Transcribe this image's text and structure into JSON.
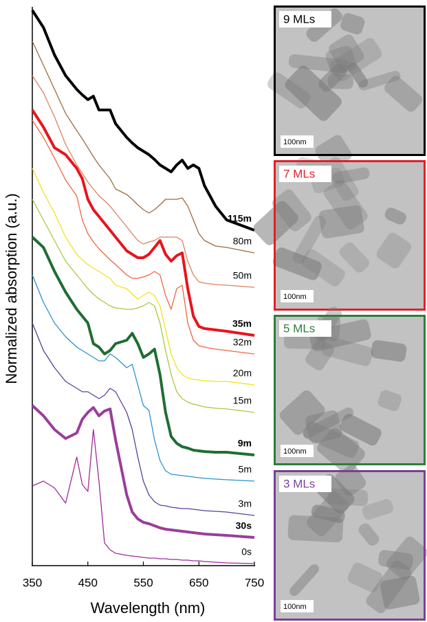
{
  "chart_data": {
    "type": "line",
    "xlabel": "Wavelength (nm)",
    "ylabel": "Normalized absorption (a.u.)",
    "xlim": [
      350,
      750
    ],
    "xticks": [
      350,
      450,
      550,
      650,
      750
    ],
    "ylim": [
      0,
      8.15
    ],
    "x": [
      350,
      370,
      390,
      410,
      430,
      440,
      450,
      460,
      470,
      480,
      490,
      500,
      520,
      530,
      540,
      550,
      560,
      570,
      580,
      590,
      600,
      610,
      620,
      630,
      640,
      650,
      660,
      680,
      700,
      750
    ],
    "series": [
      {
        "name": "115m",
        "color": "#000000",
        "bold": true,
        "values": [
          8.1,
          7.85,
          7.45,
          7.15,
          6.95,
          6.87,
          6.8,
          6.85,
          6.65,
          6.65,
          6.65,
          6.45,
          6.25,
          6.17,
          6.1,
          6.05,
          6.0,
          5.93,
          5.85,
          5.8,
          5.75,
          5.85,
          5.92,
          5.8,
          5.85,
          5.8,
          5.55,
          5.25,
          5.05,
          4.9
        ]
      },
      {
        "name": "80m",
        "color": "#9c6b3f",
        "bold": false,
        "values": [
          7.65,
          7.3,
          6.95,
          6.6,
          6.35,
          6.23,
          6.1,
          5.97,
          5.85,
          5.75,
          5.65,
          5.5,
          5.42,
          5.35,
          5.27,
          5.2,
          5.15,
          5.2,
          5.27,
          5.35,
          5.35,
          5.35,
          5.37,
          5.25,
          5.05,
          4.85,
          4.75,
          4.67,
          4.65,
          4.57
        ]
      },
      {
        "name": "50m",
        "color": "#d9825b",
        "bold": false,
        "values": [
          7.15,
          6.9,
          6.55,
          6.15,
          5.85,
          5.73,
          5.6,
          5.5,
          5.4,
          5.33,
          5.25,
          5.15,
          4.95,
          4.85,
          4.75,
          4.7,
          4.73,
          4.75,
          4.8,
          4.8,
          4.8,
          4.8,
          4.75,
          4.45,
          4.25,
          4.15,
          4.13,
          4.11,
          4.1,
          4.07
        ]
      },
      {
        "name": "35m",
        "color": "#e8141c",
        "bold": true,
        "values": [
          6.65,
          6.4,
          6.1,
          6.0,
          5.8,
          5.65,
          5.35,
          5.2,
          5.1,
          5.0,
          4.9,
          4.8,
          4.6,
          4.55,
          4.5,
          4.5,
          4.55,
          4.65,
          4.75,
          4.55,
          4.45,
          4.53,
          4.57,
          4.05,
          3.65,
          3.5,
          3.47,
          3.45,
          3.43,
          3.37
        ]
      },
      {
        "name": "32m",
        "color": "#f0643c",
        "bold": false,
        "values": [
          6.5,
          6.25,
          5.95,
          5.63,
          5.4,
          5.05,
          4.85,
          4.73,
          4.63,
          4.55,
          4.47,
          4.4,
          4.25,
          4.2,
          4.2,
          4.22,
          4.25,
          4.3,
          4.25,
          3.95,
          3.75,
          4.05,
          4.1,
          3.55,
          3.3,
          3.22,
          3.2,
          3.17,
          3.15,
          3.1
        ]
      },
      {
        "name": "20m",
        "color": "#f2e01a",
        "bold": false,
        "values": [
          5.8,
          5.45,
          5.15,
          4.8,
          4.55,
          4.47,
          4.4,
          4.35,
          4.3,
          4.25,
          4.2,
          4.1,
          4.05,
          3.97,
          3.9,
          3.95,
          4.0,
          3.95,
          3.8,
          3.45,
          3.1,
          2.9,
          2.8,
          2.75,
          2.73,
          2.72,
          2.71,
          2.7,
          2.7,
          2.65
        ]
      },
      {
        "name": "15m",
        "color": "#a8c83c",
        "bold": false,
        "values": [
          5.35,
          5.05,
          4.75,
          4.45,
          4.25,
          4.15,
          4.05,
          3.97,
          3.9,
          3.85,
          3.8,
          3.77,
          3.75,
          3.75,
          3.77,
          3.8,
          3.85,
          3.8,
          3.55,
          3.15,
          2.8,
          2.55,
          2.45,
          2.4,
          2.37,
          2.35,
          2.33,
          2.31,
          2.3,
          2.25
        ]
      },
      {
        "name": "9m",
        "color": "#1e6e32",
        "bold": true,
        "values": [
          4.8,
          4.65,
          4.3,
          4.0,
          3.75,
          3.65,
          3.55,
          3.25,
          3.2,
          3.1,
          3.15,
          3.25,
          3.3,
          3.4,
          3.25,
          3.05,
          3.1,
          3.17,
          2.8,
          2.25,
          1.9,
          1.8,
          1.75,
          1.73,
          1.7,
          1.69,
          1.68,
          1.67,
          1.67,
          1.63
        ]
      },
      {
        "name": "5m",
        "color": "#2b8fd0",
        "bold": false,
        "values": [
          4.25,
          3.85,
          3.55,
          3.35,
          3.2,
          3.15,
          3.1,
          3.05,
          3.0,
          3.0,
          3.1,
          3.05,
          2.9,
          2.95,
          2.65,
          2.35,
          2.28,
          1.85,
          1.55,
          1.4,
          1.35,
          1.34,
          1.33,
          1.32,
          1.31,
          1.3,
          1.29,
          1.28,
          1.27,
          1.25
        ]
      },
      {
        "name": "3m",
        "color": "#5a3d9a",
        "bold": false,
        "values": [
          3.55,
          3.15,
          2.9,
          2.7,
          2.6,
          2.55,
          2.55,
          2.5,
          2.45,
          2.5,
          2.6,
          2.55,
          2.25,
          2.0,
          1.6,
          1.25,
          1.05,
          0.95,
          0.9,
          0.89,
          0.87,
          0.86,
          0.85,
          0.85,
          0.84,
          0.83,
          0.82,
          0.81,
          0.8,
          0.75
        ]
      },
      {
        "name": "30s",
        "color": "#9b3d9b",
        "bold": true,
        "values": [
          2.35,
          2.2,
          2.0,
          1.87,
          1.95,
          2.15,
          2.25,
          2.32,
          2.2,
          2.27,
          2.3,
          1.85,
          1.05,
          0.8,
          0.7,
          0.65,
          0.63,
          0.6,
          0.57,
          0.55,
          0.54,
          0.53,
          0.52,
          0.51,
          0.5,
          0.49,
          0.48,
          0.47,
          0.46,
          0.43
        ]
      },
      {
        "name": "0s",
        "color": "#a0289b",
        "bold": false,
        "values": [
          1.18,
          1.25,
          1.15,
          0.93,
          1.6,
          1.2,
          1.1,
          2.0,
          1.25,
          0.35,
          0.25,
          0.2,
          0.17,
          0.16,
          0.15,
          0.14,
          0.13,
          0.13,
          0.12,
          0.12,
          0.11,
          0.11,
          0.1,
          0.1,
          0.09,
          0.09,
          0.08,
          0.07,
          0.06,
          0.05
        ]
      }
    ]
  },
  "panels": [
    {
      "label": "9 MLs",
      "scale_bar": "100nm",
      "color": "#000000"
    },
    {
      "label": "7 MLs",
      "scale_bar": "100nm",
      "color": "#e0202a"
    },
    {
      "label": "5 MLs",
      "scale_bar": "100nm",
      "color": "#2e7d3a"
    },
    {
      "label": "3 MLs",
      "scale_bar": "100nm",
      "color": "#7b3f98"
    }
  ]
}
